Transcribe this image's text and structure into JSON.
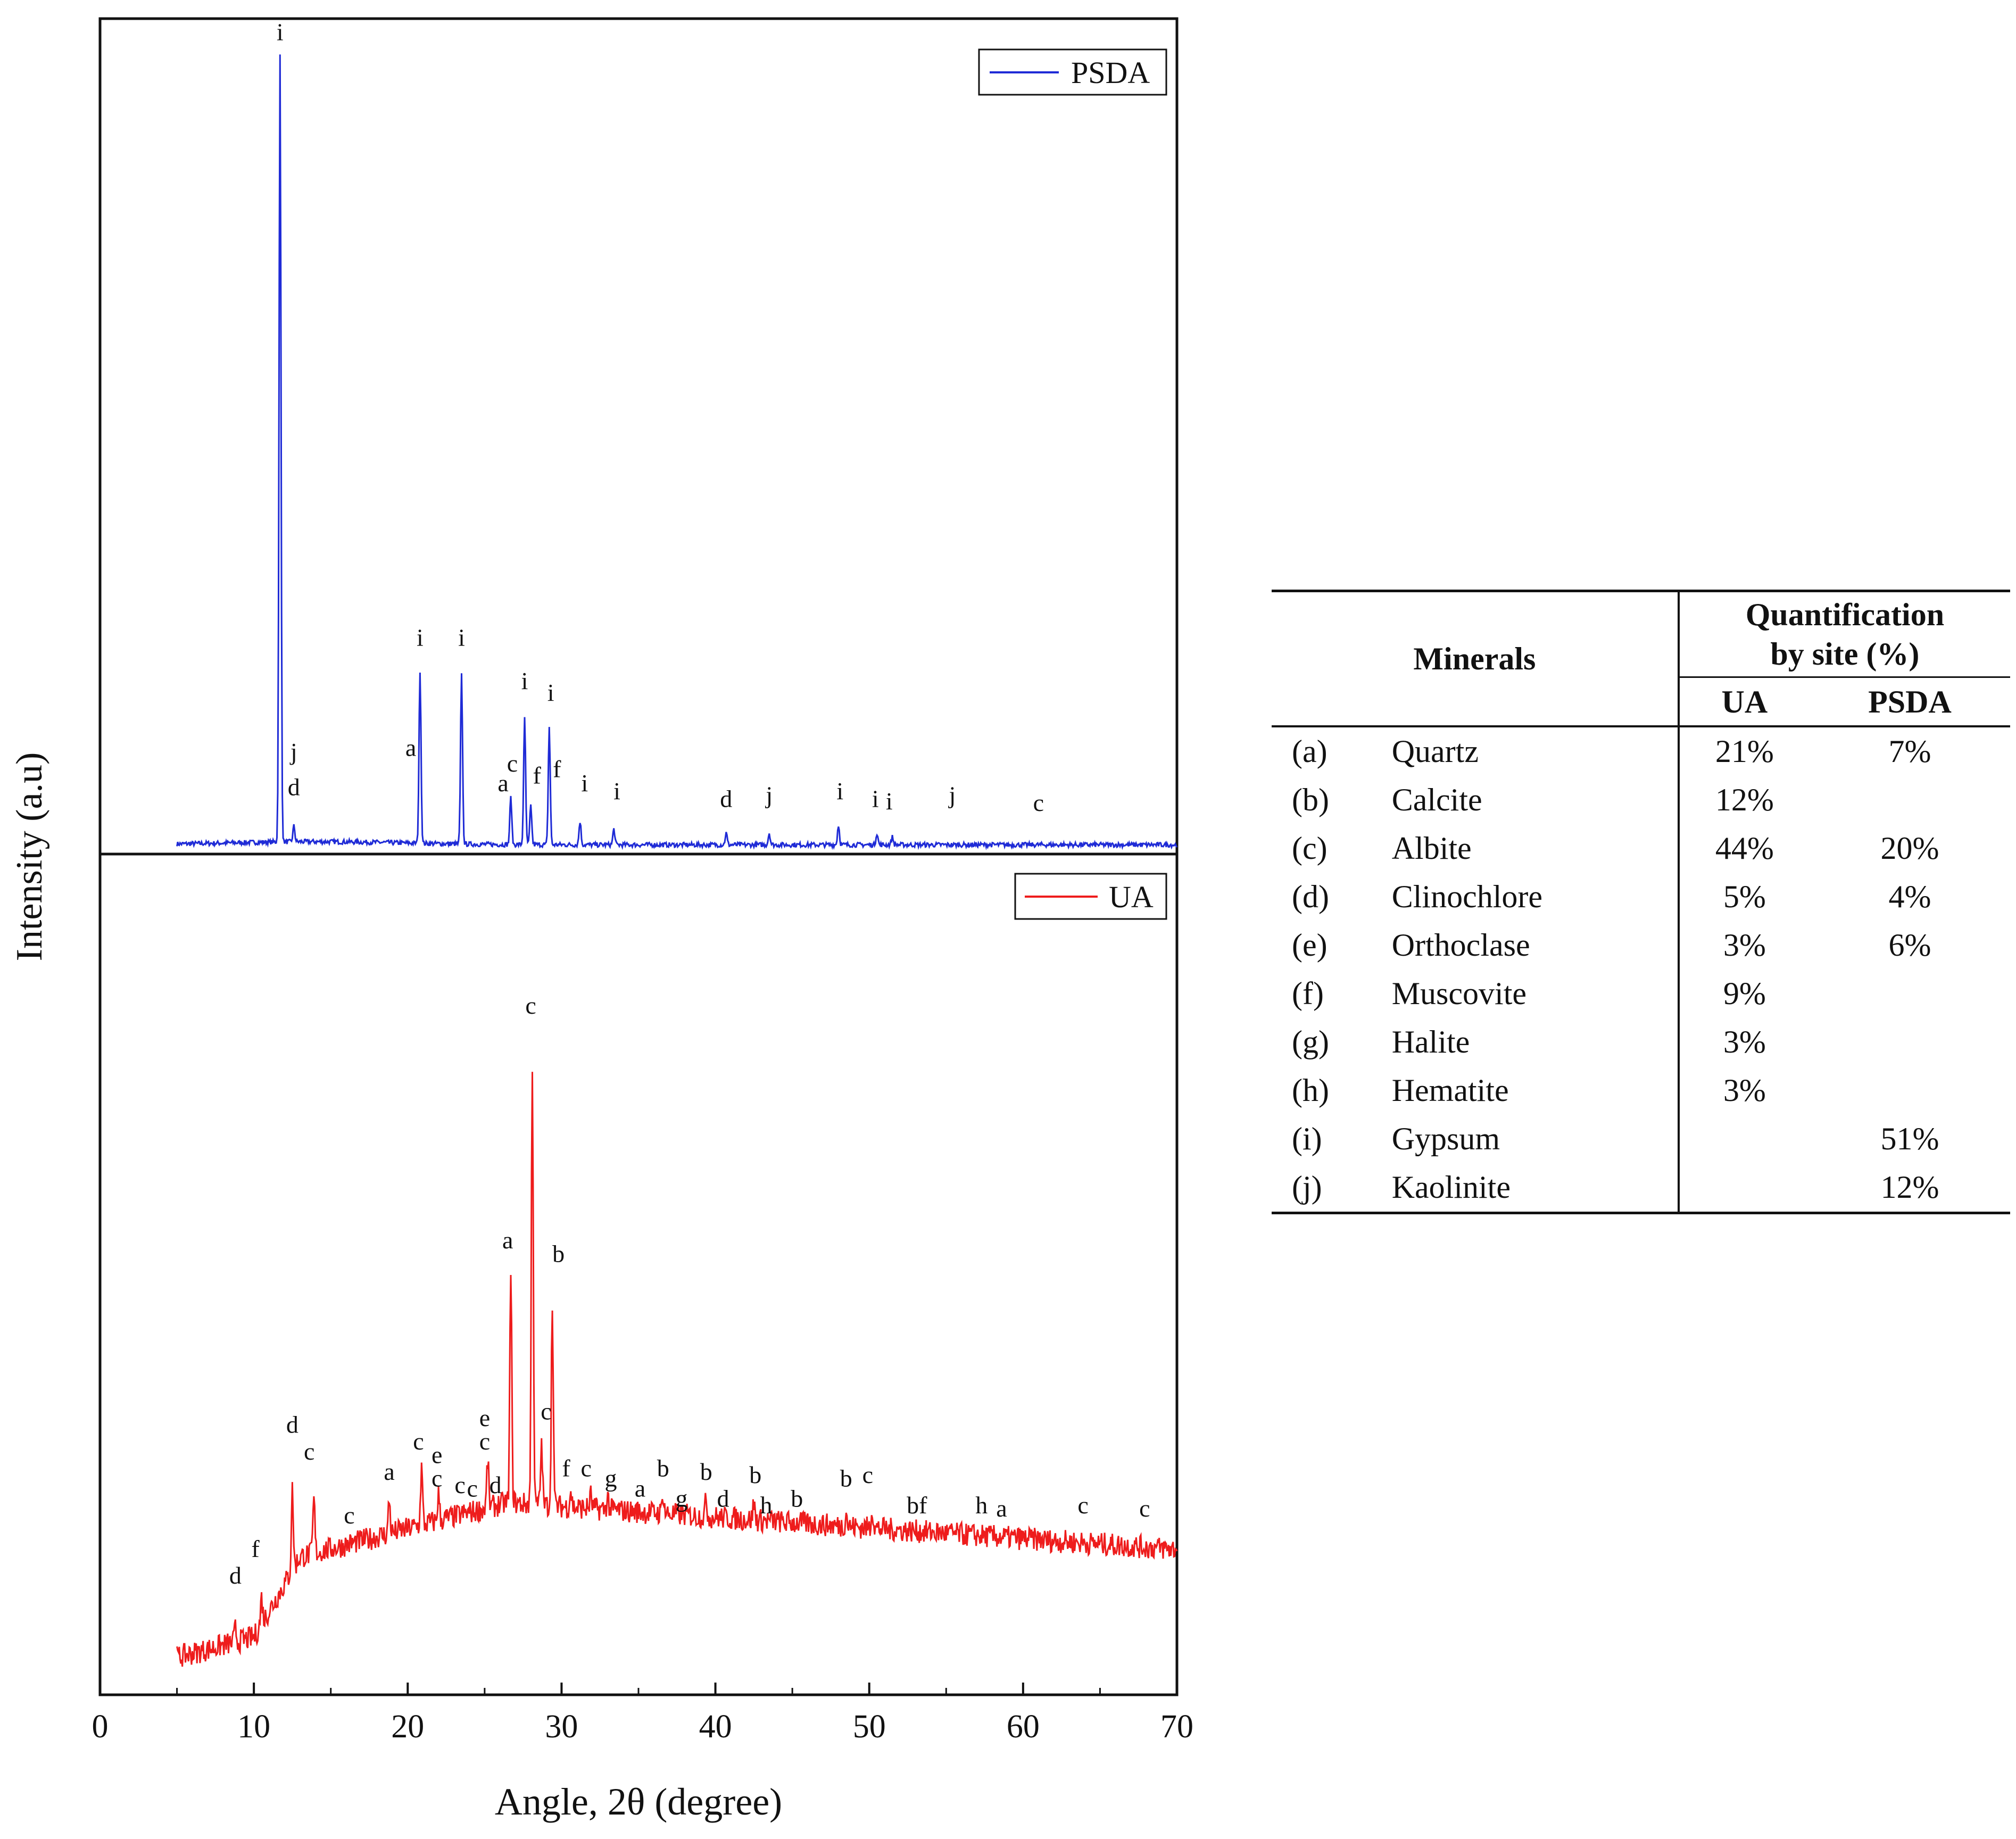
{
  "chart_data": [
    {
      "type": "line",
      "panel": "top",
      "series": [
        {
          "name": "PSDA",
          "color": "#1f2bd6"
        }
      ],
      "legend": "top-right",
      "peaks": [
        {
          "x": 11.7,
          "h": 1.0
        },
        {
          "x": 20.8,
          "h": 0.22
        },
        {
          "x": 23.5,
          "h": 0.215
        },
        {
          "x": 27.6,
          "h": 0.16
        },
        {
          "x": 29.2,
          "h": 0.15
        },
        {
          "x": 26.7,
          "h": 0.06
        },
        {
          "x": 28.0,
          "h": 0.05
        },
        {
          "x": 31.2,
          "h": 0.03
        },
        {
          "x": 33.4,
          "h": 0.02
        },
        {
          "x": 40.7,
          "h": 0.015
        },
        {
          "x": 43.5,
          "h": 0.015
        },
        {
          "x": 48.0,
          "h": 0.025
        },
        {
          "x": 50.5,
          "h": 0.015
        },
        {
          "x": 51.5,
          "h": 0.01
        },
        {
          "x": 12.6,
          "h": 0.02
        }
      ],
      "labels": [
        {
          "text": "i",
          "x": 11.7,
          "y": 1.03
        },
        {
          "text": "j",
          "x": 12.6,
          "y": 0.115
        },
        {
          "text": "d",
          "x": 12.6,
          "y": 0.07
        },
        {
          "text": "i",
          "x": 20.8,
          "y": 0.26
        },
        {
          "text": "a",
          "x": 20.2,
          "y": 0.12
        },
        {
          "text": "i",
          "x": 23.5,
          "y": 0.26
        },
        {
          "text": "a",
          "x": 26.2,
          "y": 0.075
        },
        {
          "text": "c",
          "x": 26.8,
          "y": 0.1
        },
        {
          "text": "i",
          "x": 27.6,
          "y": 0.205
        },
        {
          "text": "f",
          "x": 28.4,
          "y": 0.085
        },
        {
          "text": "i",
          "x": 29.3,
          "y": 0.19
        },
        {
          "text": "f",
          "x": 29.7,
          "y": 0.093
        },
        {
          "text": "i",
          "x": 31.5,
          "y": 0.075
        },
        {
          "text": "i",
          "x": 33.6,
          "y": 0.065
        },
        {
          "text": "d",
          "x": 40.7,
          "y": 0.055
        },
        {
          "text": "j",
          "x": 43.5,
          "y": 0.06
        },
        {
          "text": "i",
          "x": 48.1,
          "y": 0.065
        },
        {
          "text": "i",
          "x": 50.4,
          "y": 0.055
        },
        {
          "text": "i",
          "x": 51.3,
          "y": 0.052
        },
        {
          "text": "j",
          "x": 55.4,
          "y": 0.06
        },
        {
          "text": "c",
          "x": 61.0,
          "y": 0.05
        }
      ]
    },
    {
      "type": "line",
      "panel": "bottom",
      "series": [
        {
          "name": "UA",
          "color": "#ee1c1c"
        }
      ],
      "legend": "top-right",
      "peaks": [
        {
          "x": 28.1,
          "h": 0.66
        },
        {
          "x": 26.7,
          "h": 0.34
        },
        {
          "x": 29.4,
          "h": 0.3
        },
        {
          "x": 12.5,
          "h": 0.12
        },
        {
          "x": 13.9,
          "h": 0.08
        },
        {
          "x": 20.9,
          "h": 0.085
        },
        {
          "x": 18.8,
          "h": 0.05
        },
        {
          "x": 22.0,
          "h": 0.04
        },
        {
          "x": 25.2,
          "h": 0.07
        },
        {
          "x": 28.7,
          "h": 0.09
        },
        {
          "x": 10.5,
          "h": 0.04
        },
        {
          "x": 8.8,
          "h": 0.02
        },
        {
          "x": 36.6,
          "h": 0.03
        },
        {
          "x": 39.4,
          "h": 0.025
        },
        {
          "x": 42.5,
          "h": 0.025
        },
        {
          "x": 50.2,
          "h": 0.03
        },
        {
          "x": 48.5,
          "h": 0.02
        },
        {
          "x": 30.6,
          "h": 0.025
        },
        {
          "x": 31.9,
          "h": 0.02
        },
        {
          "x": 33.0,
          "h": 0.02
        }
      ],
      "labels": [
        {
          "text": "d",
          "x": 8.8,
          "y": 0.13
        },
        {
          "text": "f",
          "x": 10.1,
          "y": 0.17
        },
        {
          "text": "d",
          "x": 12.5,
          "y": 0.355
        },
        {
          "text": "c",
          "x": 13.6,
          "y": 0.315
        },
        {
          "text": "c",
          "x": 16.2,
          "y": 0.22
        },
        {
          "text": "a",
          "x": 18.8,
          "y": 0.285
        },
        {
          "text": "c",
          "x": 20.7,
          "y": 0.33
        },
        {
          "text": "e",
          "x": 21.9,
          "y": 0.31
        },
        {
          "text": "c",
          "x": 21.9,
          "y": 0.275
        },
        {
          "text": "c",
          "x": 23.4,
          "y": 0.265
        },
        {
          "text": "c",
          "x": 24.2,
          "y": 0.26
        },
        {
          "text": "e",
          "x": 25.0,
          "y": 0.365
        },
        {
          "text": "c",
          "x": 25.0,
          "y": 0.33
        },
        {
          "text": "d",
          "x": 25.7,
          "y": 0.265
        },
        {
          "text": "a",
          "x": 26.5,
          "y": 0.63
        },
        {
          "text": "c",
          "x": 28.0,
          "y": 0.98
        },
        {
          "text": "b",
          "x": 29.8,
          "y": 0.61
        },
        {
          "text": "c",
          "x": 29.0,
          "y": 0.375
        },
        {
          "text": "f",
          "x": 30.3,
          "y": 0.29
        },
        {
          "text": "c",
          "x": 31.6,
          "y": 0.29
        },
        {
          "text": "g",
          "x": 33.2,
          "y": 0.275
        },
        {
          "text": "a",
          "x": 35.1,
          "y": 0.26
        },
        {
          "text": "b",
          "x": 36.6,
          "y": 0.29
        },
        {
          "text": "g",
          "x": 37.8,
          "y": 0.245
        },
        {
          "text": "b",
          "x": 39.4,
          "y": 0.285
        },
        {
          "text": "d",
          "x": 40.5,
          "y": 0.245
        },
        {
          "text": "b",
          "x": 42.6,
          "y": 0.28
        },
        {
          "text": "h",
          "x": 43.3,
          "y": 0.235
        },
        {
          "text": "b",
          "x": 45.3,
          "y": 0.245
        },
        {
          "text": "b",
          "x": 48.5,
          "y": 0.275
        },
        {
          "text": "c",
          "x": 49.9,
          "y": 0.28
        },
        {
          "text": "bf",
          "x": 53.1,
          "y": 0.235
        },
        {
          "text": "h",
          "x": 57.3,
          "y": 0.235
        },
        {
          "text": "a",
          "x": 58.6,
          "y": 0.23
        },
        {
          "text": "c",
          "x": 63.9,
          "y": 0.235
        },
        {
          "text": "c",
          "x": 67.9,
          "y": 0.23
        }
      ]
    }
  ],
  "axes": {
    "xlabel": "Angle, 2θ (degree)",
    "ylabel": "Intensity (a.u)",
    "xlim": [
      0,
      70
    ],
    "xticks": [
      0,
      10,
      20,
      30,
      40,
      50,
      60,
      70
    ],
    "xtick_labels": [
      "0",
      "10",
      "20",
      "30",
      "40",
      "50",
      "60",
      "70"
    ],
    "data_range": [
      5,
      70
    ]
  },
  "table": {
    "header": {
      "minerals": "Minerals",
      "quant_line1": "Quantification",
      "quant_line2": "by site (%)",
      "col_ua": "UA",
      "col_psda": "PSDA"
    },
    "rows": [
      {
        "code": "(a)",
        "name": "Quartz",
        "ua": "21%",
        "psda": "7%"
      },
      {
        "code": "(b)",
        "name": "Calcite",
        "ua": "12%",
        "psda": ""
      },
      {
        "code": "(c)",
        "name": "Albite",
        "ua": "44%",
        "psda": "20%"
      },
      {
        "code": "(d)",
        "name": "Clinochlore",
        "ua": "5%",
        "psda": "4%"
      },
      {
        "code": "(e)",
        "name": "Orthoclase",
        "ua": "3%",
        "psda": "6%"
      },
      {
        "code": "(f)",
        "name": "Muscovite",
        "ua": "9%",
        "psda": ""
      },
      {
        "code": "(g)",
        "name": "Halite",
        "ua": "3%",
        "psda": ""
      },
      {
        "code": "(h)",
        "name": "Hematite",
        "ua": "3%",
        "psda": ""
      },
      {
        "code": "(i)",
        "name": "Gypsum",
        "ua": "",
        "psda": "51%"
      },
      {
        "code": "(j)",
        "name": "Kaolinite",
        "ua": "",
        "psda": "12%"
      }
    ]
  }
}
